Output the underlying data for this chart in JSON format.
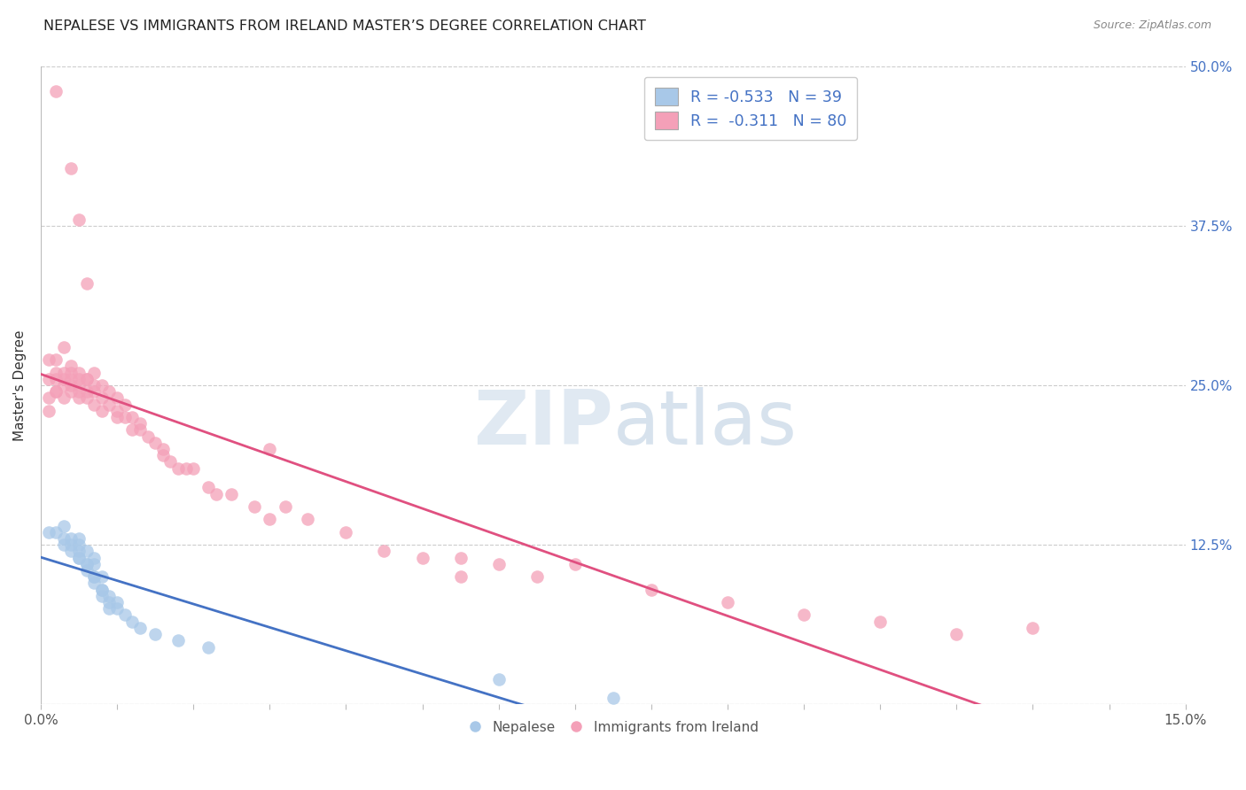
{
  "title": "NEPALESE VS IMMIGRANTS FROM IRELAND MASTER’S DEGREE CORRELATION CHART",
  "source": "Source: ZipAtlas.com",
  "ylabel": "Master's Degree",
  "xlim": [
    0.0,
    0.15
  ],
  "ylim": [
    0.0,
    0.5
  ],
  "ytick_vals": [
    0.0,
    0.125,
    0.25,
    0.375,
    0.5
  ],
  "ytick_labels": [
    "",
    "12.5%",
    "25.0%",
    "37.5%",
    "50.0%"
  ],
  "color_blue": "#a8c8e8",
  "color_pink": "#f4a0b8",
  "line_blue": "#4472c4",
  "line_pink": "#e05080",
  "watermark_zip": "ZIP",
  "watermark_atlas": "atlas",
  "nepalese_x": [
    0.001,
    0.002,
    0.003,
    0.003,
    0.003,
    0.004,
    0.004,
    0.004,
    0.005,
    0.005,
    0.005,
    0.005,
    0.005,
    0.006,
    0.006,
    0.006,
    0.006,
    0.007,
    0.007,
    0.007,
    0.007,
    0.007,
    0.008,
    0.008,
    0.008,
    0.008,
    0.009,
    0.009,
    0.009,
    0.01,
    0.01,
    0.011,
    0.012,
    0.013,
    0.015,
    0.018,
    0.022,
    0.06,
    0.075
  ],
  "nepalese_y": [
    0.135,
    0.135,
    0.14,
    0.13,
    0.125,
    0.13,
    0.125,
    0.12,
    0.13,
    0.125,
    0.12,
    0.115,
    0.115,
    0.12,
    0.11,
    0.105,
    0.11,
    0.115,
    0.11,
    0.1,
    0.095,
    0.1,
    0.1,
    0.09,
    0.085,
    0.09,
    0.085,
    0.08,
    0.075,
    0.075,
    0.08,
    0.07,
    0.065,
    0.06,
    0.055,
    0.05,
    0.045,
    0.02,
    0.005
  ],
  "ireland_x": [
    0.001,
    0.001,
    0.001,
    0.001,
    0.002,
    0.002,
    0.002,
    0.002,
    0.002,
    0.003,
    0.003,
    0.003,
    0.003,
    0.003,
    0.004,
    0.004,
    0.004,
    0.004,
    0.004,
    0.005,
    0.005,
    0.005,
    0.005,
    0.005,
    0.006,
    0.006,
    0.006,
    0.006,
    0.007,
    0.007,
    0.007,
    0.007,
    0.008,
    0.008,
    0.008,
    0.009,
    0.009,
    0.01,
    0.01,
    0.01,
    0.011,
    0.011,
    0.012,
    0.012,
    0.013,
    0.013,
    0.014,
    0.015,
    0.016,
    0.016,
    0.017,
    0.018,
    0.019,
    0.02,
    0.022,
    0.023,
    0.025,
    0.028,
    0.03,
    0.032,
    0.035,
    0.04,
    0.045,
    0.05,
    0.055,
    0.06,
    0.065,
    0.07,
    0.08,
    0.09,
    0.1,
    0.11,
    0.12,
    0.002,
    0.004,
    0.005,
    0.006,
    0.03,
    0.055,
    0.13
  ],
  "ireland_y": [
    0.24,
    0.23,
    0.255,
    0.27,
    0.245,
    0.255,
    0.245,
    0.26,
    0.27,
    0.255,
    0.26,
    0.25,
    0.24,
    0.28,
    0.25,
    0.26,
    0.255,
    0.245,
    0.265,
    0.24,
    0.25,
    0.245,
    0.255,
    0.26,
    0.245,
    0.255,
    0.24,
    0.255,
    0.25,
    0.235,
    0.245,
    0.26,
    0.23,
    0.24,
    0.25,
    0.235,
    0.245,
    0.225,
    0.23,
    0.24,
    0.225,
    0.235,
    0.215,
    0.225,
    0.215,
    0.22,
    0.21,
    0.205,
    0.2,
    0.195,
    0.19,
    0.185,
    0.185,
    0.185,
    0.17,
    0.165,
    0.165,
    0.155,
    0.145,
    0.155,
    0.145,
    0.135,
    0.12,
    0.115,
    0.115,
    0.11,
    0.1,
    0.11,
    0.09,
    0.08,
    0.07,
    0.065,
    0.055,
    0.48,
    0.42,
    0.38,
    0.33,
    0.2,
    0.1,
    0.06
  ]
}
